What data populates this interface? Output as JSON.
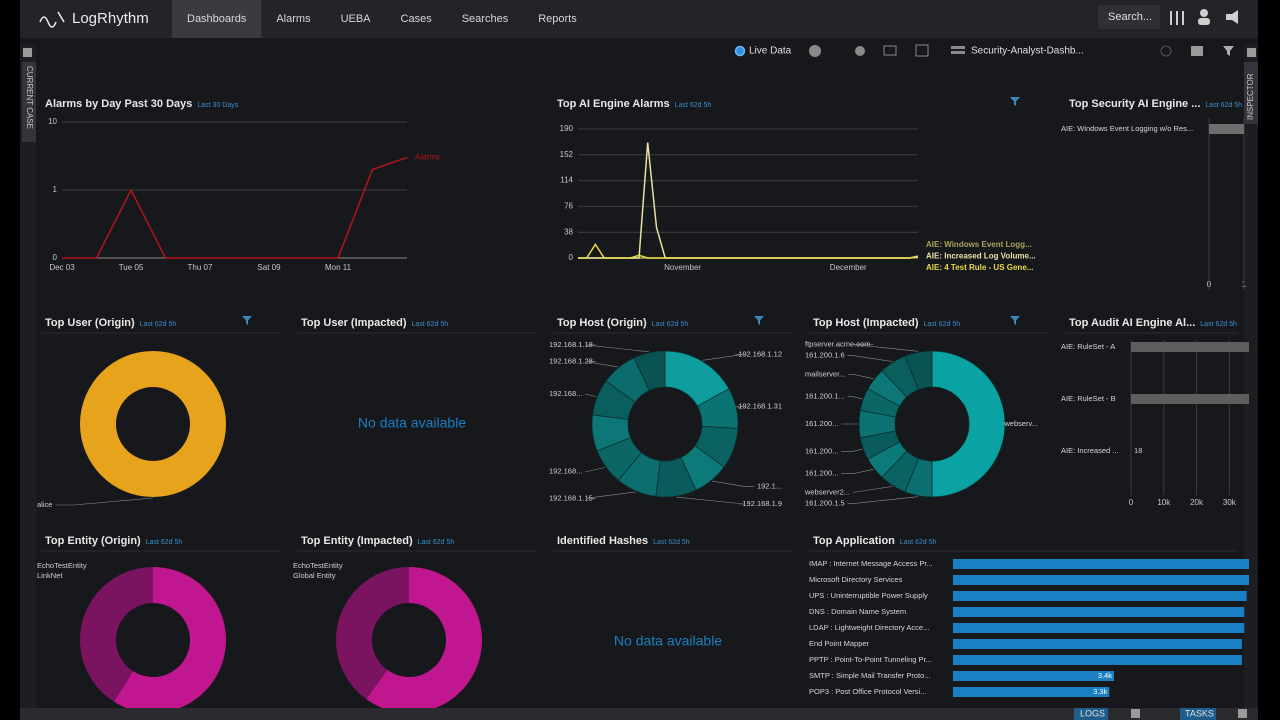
{
  "nav": {
    "logo": "LogRhythm",
    "tabs": [
      "Dashboards",
      "Alarms",
      "UEBA",
      "Cases",
      "Searches",
      "Reports"
    ],
    "active_tab": 0,
    "search": "Search..."
  },
  "toolbar": {
    "live": "Live Data",
    "dashboard": "Security-Analyst-Dashb..."
  },
  "sidebar": {
    "left": "CURRENT CASE",
    "right": "INSPECTOR"
  },
  "footer": {
    "logs": "LOGS",
    "tasks": "TASKS"
  },
  "panels": [
    {
      "title": "Alarms by Day Past 30 Days",
      "subtitle": "Last 30 Days",
      "type": "line",
      "yscale": "symlog",
      "ylim": [
        0,
        10
      ],
      "yticks": [
        0,
        1,
        10
      ],
      "grid": true,
      "legend": "line-end",
      "categories": [
        "Dec 03",
        null,
        "Tue 05",
        null,
        "Thu 07",
        null,
        "Sat 09",
        null,
        "Mon 11",
        null,
        null
      ],
      "series": [
        {
          "name": "Alarms",
          "color": "#b3141c",
          "values": [
            0,
            0,
            1,
            0,
            0,
            0,
            0,
            0,
            0,
            2,
            3
          ]
        }
      ]
    },
    {
      "title": "Top AI Engine Alarms",
      "subtitle": "Last 62d 5h",
      "filter": true,
      "type": "line",
      "ylim": [
        0,
        190
      ],
      "yticks": [
        0,
        38,
        76,
        114,
        152,
        190
      ],
      "grid": true,
      "legend": "bottom-right",
      "categories": [
        null,
        null,
        null,
        null,
        null,
        null,
        null,
        null,
        null,
        null,
        null,
        null,
        "November",
        null,
        null,
        null,
        null,
        null,
        null,
        null,
        null,
        null,
        null,
        null,
        null,
        null,
        null,
        null,
        null,
        null,
        null,
        "December",
        null,
        null,
        null,
        null,
        null,
        null,
        null,
        null
      ],
      "series": [
        {
          "name": "AIE: Windows Event Logg...",
          "color": "#a9a35c",
          "values": [
            0,
            0,
            0,
            0,
            0,
            0,
            0,
            0,
            0,
            0,
            0,
            0,
            0,
            0,
            0,
            0,
            0,
            0,
            0,
            0,
            0,
            0,
            0,
            0,
            0,
            0,
            0,
            0,
            0,
            0,
            0,
            0,
            0,
            0,
            0,
            0,
            0,
            0,
            0,
            3
          ]
        },
        {
          "name": "AIE: Increased Log Volume...",
          "color": "#e9e1a6",
          "values": [
            0,
            0,
            0,
            0,
            0,
            0,
            0,
            0,
            170,
            45,
            0,
            0,
            0,
            0,
            0,
            0,
            0,
            0,
            0,
            0,
            0,
            0,
            0,
            0,
            0,
            0,
            0,
            0,
            0,
            0,
            0,
            0,
            0,
            0,
            0,
            0,
            0,
            0,
            0,
            2
          ]
        },
        {
          "name": "AIE: 4 Test Rule - US Gene...",
          "color": "#e8d948",
          "values": [
            0,
            0,
            20,
            0,
            0,
            0,
            0,
            4,
            0,
            0,
            0,
            0,
            0,
            0,
            0,
            0,
            0,
            0,
            0,
            0,
            0,
            0,
            0,
            0,
            0,
            0,
            0,
            0,
            0,
            0,
            0,
            0,
            0,
            0,
            0,
            0,
            0,
            0,
            0,
            1
          ]
        }
      ]
    },
    {
      "title": "Top Security AI Engine ...",
      "subtitle": "Last 62d 5h",
      "type": "barh",
      "categories": [
        "AIE: Windows Event Logging w/o Res..."
      ],
      "values": [
        1
      ],
      "color": "#6e6e6e",
      "xlim": [
        0,
        1
      ],
      "xticks": [
        0,
        1
      ],
      "grid": true
    },
    {
      "title": "Top User (Origin)",
      "subtitle": "Last 62d 5h",
      "filter": true,
      "type": "donut",
      "categories": [
        "alice"
      ],
      "values": [
        100
      ],
      "colors": [
        "#e8a31c"
      ]
    },
    {
      "title": "Top User (Impacted)",
      "subtitle": "Last 62d 5h",
      "type": "empty",
      "message": "No data available"
    },
    {
      "title": "Top Host (Origin)",
      "subtitle": "Last 62d 5h",
      "filter": true,
      "type": "donut",
      "categories": [
        "192.168.1.12",
        "192.168.1.31",
        null,
        "192.1...",
        "192.168.1.9",
        "192.168.1.15",
        "192.168...",
        null,
        "192.168...",
        "192.168.1.28",
        "192.168.1.18"
      ],
      "values": [
        17,
        9,
        9,
        8,
        9,
        9,
        8,
        8,
        8,
        8,
        7
      ],
      "colors": [
        "#0f9c9c",
        "#0c7373",
        "#0b6262",
        "#0d7a7a",
        "#0a5c5c",
        "#0c6f6f",
        "#0b6666",
        "#0d7777",
        "#0a5e5e",
        "#0c6b6b",
        "#0a5353"
      ]
    },
    {
      "title": "Top Host (Impacted)",
      "subtitle": "Last 62d 5h",
      "filter": true,
      "type": "donut",
      "categories": [
        "webserv...",
        "161.200.1.5",
        "webserver2...",
        "161.200...",
        "161.200...",
        "161.200...",
        "161.200.1...",
        "mailserver...",
        "161.200.1.6",
        "ftpserver.acme.com"
      ],
      "values": [
        50,
        6,
        6,
        5,
        5,
        6,
        5,
        5,
        6,
        6
      ],
      "colors": [
        "#0aa2a2",
        "#0c6f6f",
        "#0b6262",
        "#0d7a7a",
        "#0a5c5c",
        "#0c7373",
        "#0b6666",
        "#0d7777",
        "#0a5e5e",
        "#0a5353"
      ]
    },
    {
      "title": "Top Audit AI Engine Al...",
      "subtitle": "Last 62d 5h",
      "type": "barh",
      "categories": [
        "AIE: RuleSet - A",
        "AIE: RuleSet - B",
        "AIE: Increased ..."
      ],
      "values": [
        36000,
        36000,
        18
      ],
      "value_labels": [
        null,
        null,
        "18"
      ],
      "color": "#5e5e5e",
      "xlim": [
        0,
        36000
      ],
      "xticks": [
        0,
        {
          "value": 10000,
          "label": "10k"
        },
        {
          "value": 20000,
          "label": "20k"
        },
        {
          "value": 30000,
          "label": "30k"
        }
      ],
      "grid": true
    },
    {
      "title": "Top Entity (Origin)",
      "subtitle": "Last 62d 5h",
      "type": "donut",
      "labels": "top-left",
      "categories": [
        "EchoTestEntity",
        "LinkNet"
      ],
      "values": [
        59,
        41
      ],
      "colors": [
        "#c0168f",
        "#7a1360"
      ]
    },
    {
      "title": "Top Entity (Impacted)",
      "subtitle": "Last 62d 5h",
      "type": "donut",
      "labels": "top-left",
      "categories": [
        "EchoTestEntity",
        "Global Entity"
      ],
      "values": [
        60,
        40
      ],
      "colors": [
        "#c0168f",
        "#7a1360"
      ]
    },
    {
      "title": "Identified Hashes",
      "subtitle": "Last 62d 5h",
      "type": "empty",
      "message": "No data available"
    },
    {
      "title": "Top Application",
      "subtitle": "Last 62d 5h",
      "type": "barh",
      "color": "#1b7fc4",
      "categories": [
        "IMAP : Internet Message Access Pr...",
        "Microsoft Directory Services",
        "UPS : Uninterruptible Power Supply",
        "DNS : Domain Name System",
        "LDAP : Lightweight Directory Acce...",
        "End Point Mapper",
        "PPTP : Point-To-Point Tunneling Pr...",
        "SMTP : Simple Mail Transfer Proto...",
        "POP3 : Post Office Protocol Versi..."
      ],
      "values": [
        6250,
        6250,
        6200,
        6150,
        6150,
        6100,
        6100,
        3400,
        3300
      ],
      "value_labels": [
        null,
        null,
        null,
        null,
        null,
        null,
        null,
        "3.4k",
        "3.3k"
      ]
    }
  ]
}
